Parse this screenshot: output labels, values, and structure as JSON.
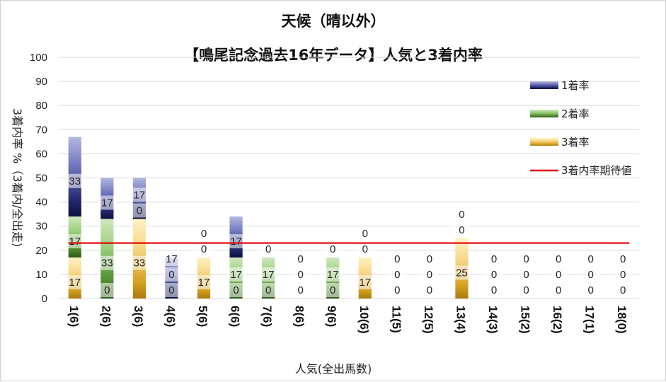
{
  "chart_data": {
    "type": "bar",
    "stacked": true,
    "title": "天候（晴以外）",
    "subtitle": "【鳴尾記念過去16年データ】人気と3着内率",
    "xlabel": "人気(全出馬数)",
    "ylabel": "3着内率 %（3着内/全出走)",
    "ylim": [
      0,
      100
    ],
    "yticks": [
      0,
      10,
      20,
      30,
      40,
      50,
      60,
      70,
      80,
      90,
      100
    ],
    "grid": true,
    "legend_position": "right",
    "categories": [
      "1(6)",
      "2(6)",
      "3(6)",
      "4(6)",
      "5(6)",
      "6(6)",
      "7(6)",
      "8(6)",
      "9(6)",
      "10(6)",
      "11(5)",
      "12(5)",
      "13(4)",
      "14(3)",
      "15(2)",
      "16(2)",
      "17(1)",
      "18(0)"
    ],
    "series": [
      {
        "name": "3着率",
        "color": "#d4a020",
        "values": [
          17,
          0,
          33,
          0,
          17,
          0,
          0,
          0,
          0,
          17,
          0,
          0,
          25,
          0,
          0,
          0,
          0,
          0
        ]
      },
      {
        "name": "2着率",
        "color": "#4e8a2e",
        "values": [
          17,
          33,
          0,
          0,
          0,
          17,
          17,
          0,
          17,
          0,
          0,
          0,
          0,
          0,
          0,
          0,
          0,
          0
        ]
      },
      {
        "name": "1着率",
        "color": "#23296e",
        "values": [
          33,
          17,
          17,
          17,
          0,
          17,
          0,
          0,
          0,
          0,
          0,
          0,
          0,
          0,
          0,
          0,
          0,
          0
        ]
      }
    ],
    "reference_line": {
      "name": "3着内率期待値",
      "color": "#e00000",
      "value": 23
    }
  },
  "legend": [
    {
      "label": "1着率",
      "icon": "gradient-bar-icon",
      "color": "#23296e"
    },
    {
      "label": "2着率",
      "icon": "gradient-bar-icon",
      "color": "#4e8a2e"
    },
    {
      "label": "3着率",
      "icon": "gradient-bar-icon",
      "color": "#d4a020"
    },
    {
      "label": "3着内率期待値",
      "icon": "line-icon",
      "color": "#e00000"
    }
  ]
}
